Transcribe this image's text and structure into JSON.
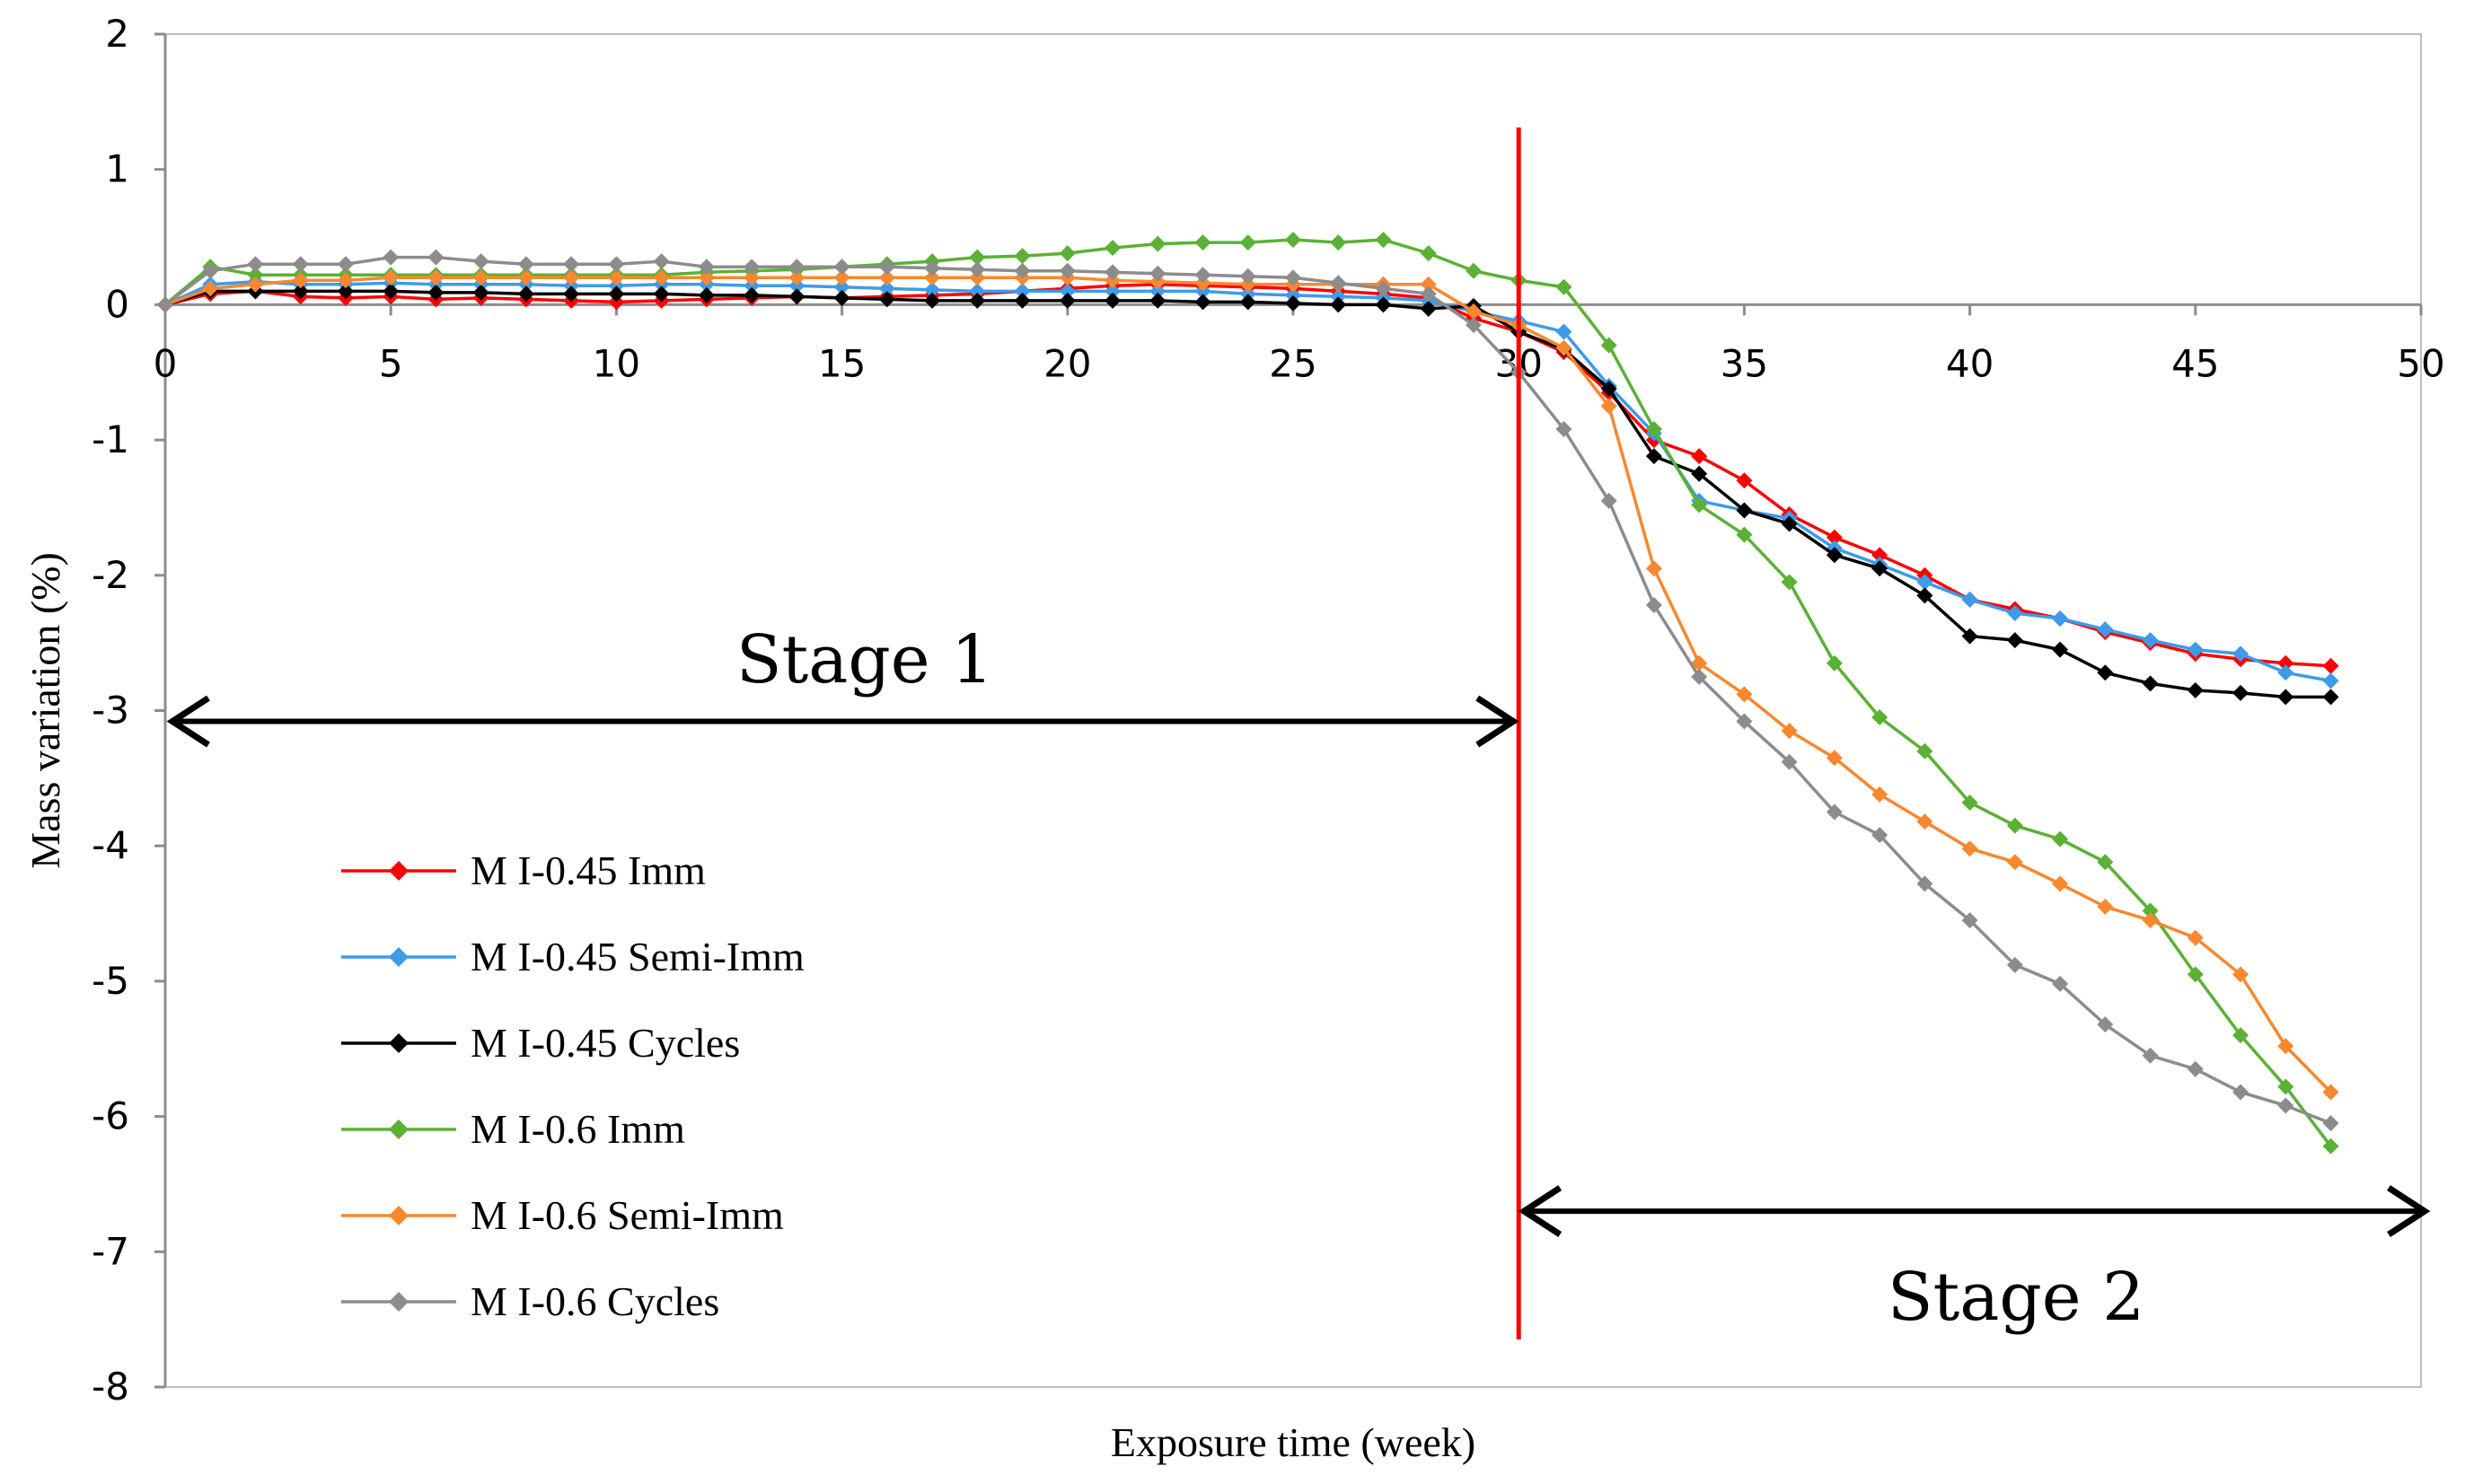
{
  "chart_data": {
    "type": "line",
    "title": "",
    "xlabel": "Exposure time (week)",
    "ylabel": "Mass variation (%)",
    "xlim": [
      0,
      50
    ],
    "ylim": [
      -8,
      2
    ],
    "xticks": [
      0,
      5,
      10,
      15,
      20,
      25,
      30,
      35,
      40,
      45,
      50
    ],
    "yticks": [
      -8,
      -7,
      -6,
      -5,
      -4,
      -3,
      -2,
      -1,
      0,
      1,
      2
    ],
    "x": [
      0,
      1,
      2,
      3,
      4,
      5,
      6,
      7,
      8,
      9,
      10,
      11,
      12,
      13,
      14,
      15,
      16,
      17,
      18,
      19,
      20,
      21,
      22,
      23,
      24,
      25,
      26,
      27,
      28,
      29,
      30,
      31,
      32,
      33,
      34,
      35,
      36,
      37,
      38,
      39,
      40,
      41,
      42,
      43,
      44,
      45,
      46,
      47,
      48
    ],
    "series": [
      {
        "name": "M I-0.45 Imm",
        "color": "#ff0000",
        "values": [
          0,
          0.08,
          0.1,
          0.06,
          0.05,
          0.06,
          0.04,
          0.05,
          0.04,
          0.03,
          0.02,
          0.03,
          0.04,
          0.05,
          0.06,
          0.05,
          0.06,
          0.07,
          0.08,
          0.1,
          0.12,
          0.14,
          0.15,
          0.14,
          0.13,
          0.12,
          0.1,
          0.08,
          0.05,
          -0.1,
          -0.2,
          -0.35,
          -0.65,
          -1.0,
          -1.12,
          -1.3,
          -1.55,
          -1.72,
          -1.85,
          -2.0,
          -2.18,
          -2.25,
          -2.32,
          -2.42,
          -2.5,
          -2.58,
          -2.62,
          -2.65,
          -2.67
        ]
      },
      {
        "name": "M I-0.45 Semi-Imm",
        "color": "#3d9be9",
        "values": [
          0,
          0.15,
          0.17,
          0.15,
          0.15,
          0.16,
          0.15,
          0.15,
          0.15,
          0.14,
          0.14,
          0.15,
          0.15,
          0.14,
          0.14,
          0.13,
          0.12,
          0.11,
          0.1,
          0.1,
          0.1,
          0.1,
          0.1,
          0.1,
          0.08,
          0.07,
          0.06,
          0.05,
          0.03,
          -0.05,
          -0.12,
          -0.2,
          -0.6,
          -0.95,
          -1.45,
          -1.52,
          -1.58,
          -1.8,
          -1.92,
          -2.05,
          -2.18,
          -2.28,
          -2.32,
          -2.4,
          -2.48,
          -2.55,
          -2.58,
          -2.72,
          -2.78
        ]
      },
      {
        "name": "M I-0.45 Cycles",
        "color": "#000000",
        "values": [
          0,
          0.1,
          0.1,
          0.1,
          0.1,
          0.1,
          0.09,
          0.09,
          0.08,
          0.08,
          0.08,
          0.08,
          0.07,
          0.07,
          0.06,
          0.05,
          0.04,
          0.03,
          0.03,
          0.03,
          0.03,
          0.03,
          0.03,
          0.02,
          0.02,
          0.01,
          0.0,
          0.0,
          -0.03,
          -0.01,
          -0.2,
          -0.33,
          -0.62,
          -1.12,
          -1.25,
          -1.52,
          -1.62,
          -1.85,
          -1.95,
          -2.15,
          -2.45,
          -2.48,
          -2.55,
          -2.72,
          -2.8,
          -2.85,
          -2.87,
          -2.9,
          -2.9
        ]
      },
      {
        "name": "M I-0.6 Imm",
        "color": "#5bb135",
        "values": [
          0,
          0.28,
          0.22,
          0.22,
          0.22,
          0.22,
          0.22,
          0.22,
          0.22,
          0.22,
          0.22,
          0.22,
          0.24,
          0.25,
          0.26,
          0.28,
          0.3,
          0.32,
          0.35,
          0.36,
          0.38,
          0.42,
          0.45,
          0.46,
          0.46,
          0.48,
          0.46,
          0.48,
          0.38,
          0.25,
          0.18,
          0.13,
          -0.3,
          -0.92,
          -1.48,
          -1.7,
          -2.05,
          -2.65,
          -3.05,
          -3.3,
          -3.68,
          -3.85,
          -3.95,
          -4.12,
          -4.48,
          -4.95,
          -5.4,
          -5.78,
          -6.22
        ]
      },
      {
        "name": "M I-0.6 Semi-Imm",
        "color": "#f7882f",
        "values": [
          0,
          0.12,
          0.15,
          0.18,
          0.18,
          0.2,
          0.2,
          0.2,
          0.2,
          0.2,
          0.2,
          0.2,
          0.2,
          0.2,
          0.2,
          0.2,
          0.2,
          0.2,
          0.2,
          0.2,
          0.2,
          0.18,
          0.17,
          0.16,
          0.15,
          0.15,
          0.15,
          0.15,
          0.15,
          -0.05,
          -0.15,
          -0.32,
          -0.75,
          -1.95,
          -2.65,
          -2.88,
          -3.15,
          -3.35,
          -3.62,
          -3.82,
          -4.02,
          -4.12,
          -4.28,
          -4.45,
          -4.55,
          -4.68,
          -4.95,
          -5.48,
          -5.82
        ]
      },
      {
        "name": "M I-0.6 Cycles",
        "color": "#8c8c8c",
        "values": [
          0,
          0.25,
          0.3,
          0.3,
          0.3,
          0.35,
          0.35,
          0.32,
          0.3,
          0.3,
          0.3,
          0.32,
          0.28,
          0.28,
          0.28,
          0.28,
          0.28,
          0.27,
          0.26,
          0.25,
          0.25,
          0.24,
          0.23,
          0.22,
          0.21,
          0.2,
          0.16,
          0.12,
          0.08,
          -0.15,
          -0.5,
          -0.92,
          -1.45,
          -2.22,
          -2.75,
          -3.08,
          -3.38,
          -3.75,
          -3.92,
          -4.28,
          -4.55,
          -4.88,
          -5.02,
          -5.32,
          -5.55,
          -5.65,
          -5.82,
          -5.92,
          -6.05
        ]
      }
    ],
    "divider_x": 30,
    "annotations": [
      {
        "text": "Stage 1",
        "arrow_from": 0,
        "arrow_to": 30,
        "arrow_y": -3.08
      },
      {
        "text": "Stage 2",
        "arrow_from": 30,
        "arrow_to": 50,
        "arrow_y": -6.7
      }
    ],
    "legend": {
      "position": "bottom-left"
    }
  }
}
